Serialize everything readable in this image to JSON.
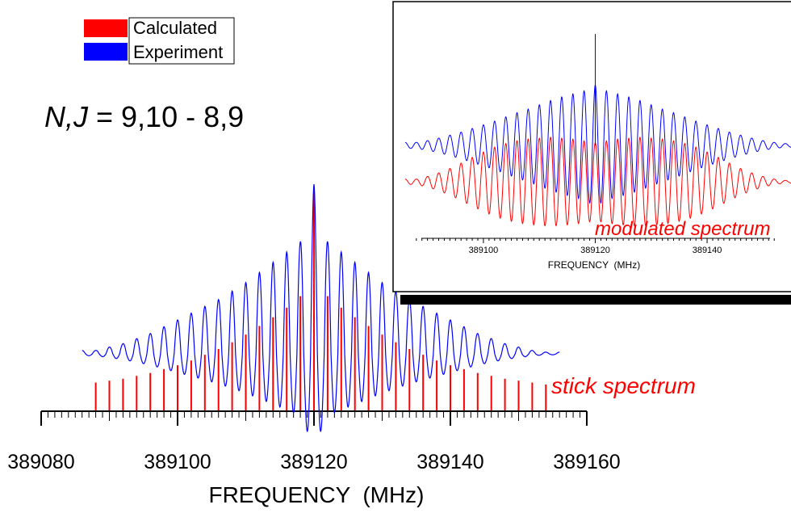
{
  "colors": {
    "calculated": "#ff0000",
    "experiment": "#0000ff"
  },
  "legend": [
    {
      "label": "Calculated",
      "color": "#ff0000"
    },
    {
      "label": "Experiment",
      "color": "#0000ff"
    }
  ],
  "transition_label": {
    "italic": "N,J",
    "rest": " = 9,10 - 8,9"
  },
  "chart_data": [
    {
      "type": "line",
      "panel": "main",
      "xlabel": "FREQUENCY  (MHz)",
      "xlim": [
        389080,
        389160
      ],
      "xticks": [
        389080,
        389100,
        389120,
        389140,
        389160
      ],
      "minor_tick_step": 1,
      "stick_spectrum": {
        "name": "Calculated",
        "x_start": 389088,
        "x_step": 2,
        "relative_intensity": [
          0.29,
          0.31,
          0.33,
          0.36,
          0.39,
          0.43,
          0.47,
          0.52,
          0.58,
          0.64,
          0.71,
          0.79,
          0.88,
          0.97,
          1.07,
          1.19,
          2.3,
          1.19,
          1.07,
          0.97,
          0.88,
          0.79,
          0.71,
          0.64,
          0.58,
          0.52,
          0.47,
          0.43,
          0.39,
          0.36,
          0.33,
          0.31,
          0.29,
          0.27
        ]
      },
      "experiment_trace": {
        "name": "Experiment",
        "x_range": [
          389086,
          389156
        ],
        "period": 2,
        "relative_peak_amplitude": [
          0.02,
          0.04,
          0.06,
          0.09,
          0.12,
          0.16,
          0.2,
          0.24,
          0.28,
          0.32,
          0.37,
          0.42,
          0.48,
          0.54,
          0.6,
          0.66,
          1.0,
          0.66,
          0.6,
          0.54,
          0.48,
          0.42,
          0.37,
          0.32,
          0.28,
          0.24,
          0.2,
          0.16,
          0.12,
          0.09,
          0.06,
          0.04,
          0.02,
          0.01
        ]
      },
      "annotation": "stick spectrum"
    },
    {
      "type": "line",
      "panel": "inset",
      "xlabel": "FREQUENCY  (MHz)",
      "xlim": [
        389085,
        389155
      ],
      "xticks": [
        389100,
        389120,
        389140
      ],
      "series": [
        {
          "name": "Experiment",
          "color": "#0000ff",
          "relative_peak_amplitude": [
            0.05,
            0.08,
            0.12,
            0.17,
            0.22,
            0.28,
            0.34,
            0.4,
            0.47,
            0.54,
            0.6,
            0.67,
            0.74,
            0.8,
            0.85,
            0.9,
            1.0,
            0.9,
            0.85,
            0.8,
            0.74,
            0.67,
            0.6,
            0.54,
            0.47,
            0.4,
            0.34,
            0.28,
            0.22,
            0.17,
            0.12,
            0.08,
            0.05,
            0.03
          ]
        },
        {
          "name": "Calculated",
          "color": "#ff0000",
          "relative_peak_amplitude": [
            0.06,
            0.12,
            0.2,
            0.3,
            0.42,
            0.55,
            0.67,
            0.78,
            0.86,
            0.92,
            0.96,
            0.98,
            1.0,
            0.98,
            0.96,
            0.92,
            0.88,
            0.92,
            0.96,
            0.98,
            1.0,
            0.98,
            0.96,
            0.92,
            0.86,
            0.78,
            0.67,
            0.55,
            0.42,
            0.3,
            0.2,
            0.12,
            0.06,
            0.03
          ]
        }
      ],
      "annotation": "modulated spectrum"
    }
  ]
}
